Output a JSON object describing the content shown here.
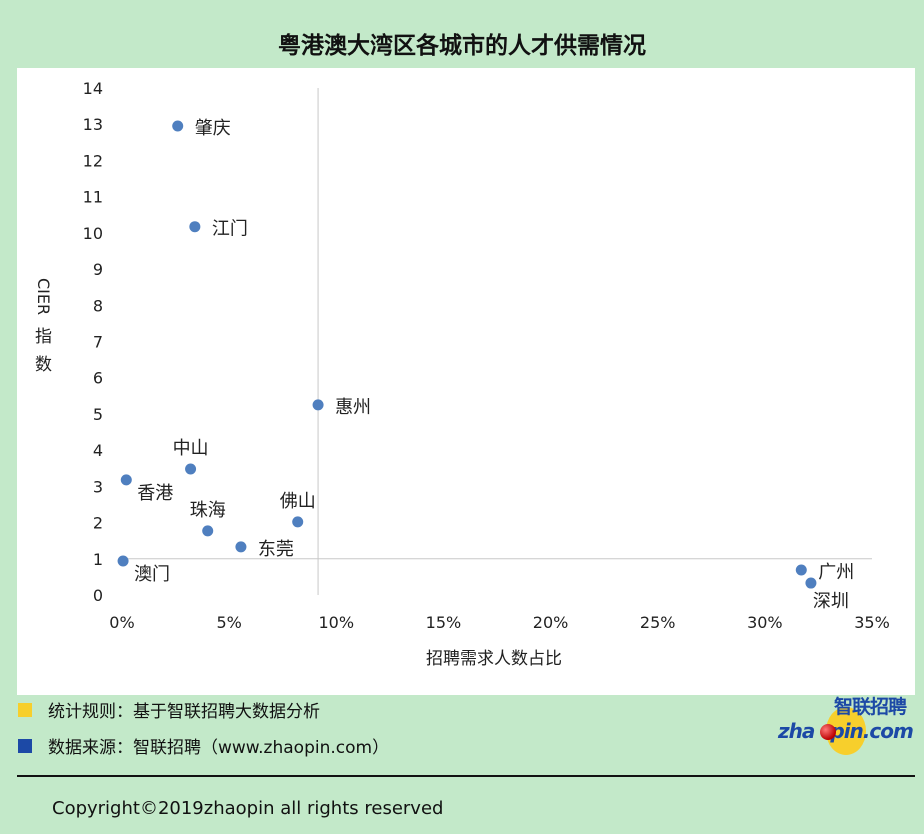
{
  "title": "粤港澳大湾区各城市的人才供需情况",
  "chart_data": {
    "type": "scatter",
    "title": "粤港澳大湾区各城市的人才供需情况",
    "xlabel": "招聘需求人数占比",
    "ylabel": "CIER指数",
    "xlim": [
      0,
      35
    ],
    "ylim": [
      0,
      14
    ],
    "x_ticks": [
      "0%",
      "5%",
      "10%",
      "15%",
      "20%",
      "25%",
      "30%",
      "35%"
    ],
    "y_ticks": [
      "0",
      "1",
      "2",
      "3",
      "4",
      "5",
      "6",
      "7",
      "8",
      "9",
      "10",
      "11",
      "12",
      "13",
      "14"
    ],
    "reference_lines": {
      "x": 9.15,
      "y": 1
    },
    "grid": false,
    "color": "#4f7fbf",
    "points": [
      {
        "label": "肇庆",
        "x": 2.6,
        "y": 12.95,
        "pos": "right"
      },
      {
        "label": "江门",
        "x": 3.4,
        "y": 10.17,
        "pos": "right"
      },
      {
        "label": "惠州",
        "x": 9.15,
        "y": 5.25,
        "pos": "right"
      },
      {
        "label": "中山",
        "x": 3.2,
        "y": 3.48,
        "pos": "above"
      },
      {
        "label": "香港",
        "x": 0.2,
        "y": 3.18,
        "pos": "right-below"
      },
      {
        "label": "佛山",
        "x": 8.2,
        "y": 2.02,
        "pos": "above"
      },
      {
        "label": "珠海",
        "x": 4.0,
        "y": 1.77,
        "pos": "above"
      },
      {
        "label": "东莞",
        "x": 5.55,
        "y": 1.33,
        "pos": "right"
      },
      {
        "label": "澳门",
        "x": 0.05,
        "y": 0.94,
        "pos": "right-below"
      },
      {
        "label": "广州",
        "x": 31.7,
        "y": 0.69,
        "pos": "right"
      },
      {
        "label": "深圳",
        "x": 32.15,
        "y": 0.33,
        "pos": "below"
      }
    ]
  },
  "legend": [
    {
      "label": "统计规则：基于智联招聘大数据分析",
      "color": "#f7cf2c"
    },
    {
      "label": "数据来源：智联招聘（www.zhaopin.com）",
      "color": "#1c49a6"
    }
  ],
  "logo": {
    "cn": "智联招聘",
    "en_left": "zha",
    "en_right": "pin.com"
  },
  "copyright": "Copyright©2019zhaopin all rights reserved"
}
